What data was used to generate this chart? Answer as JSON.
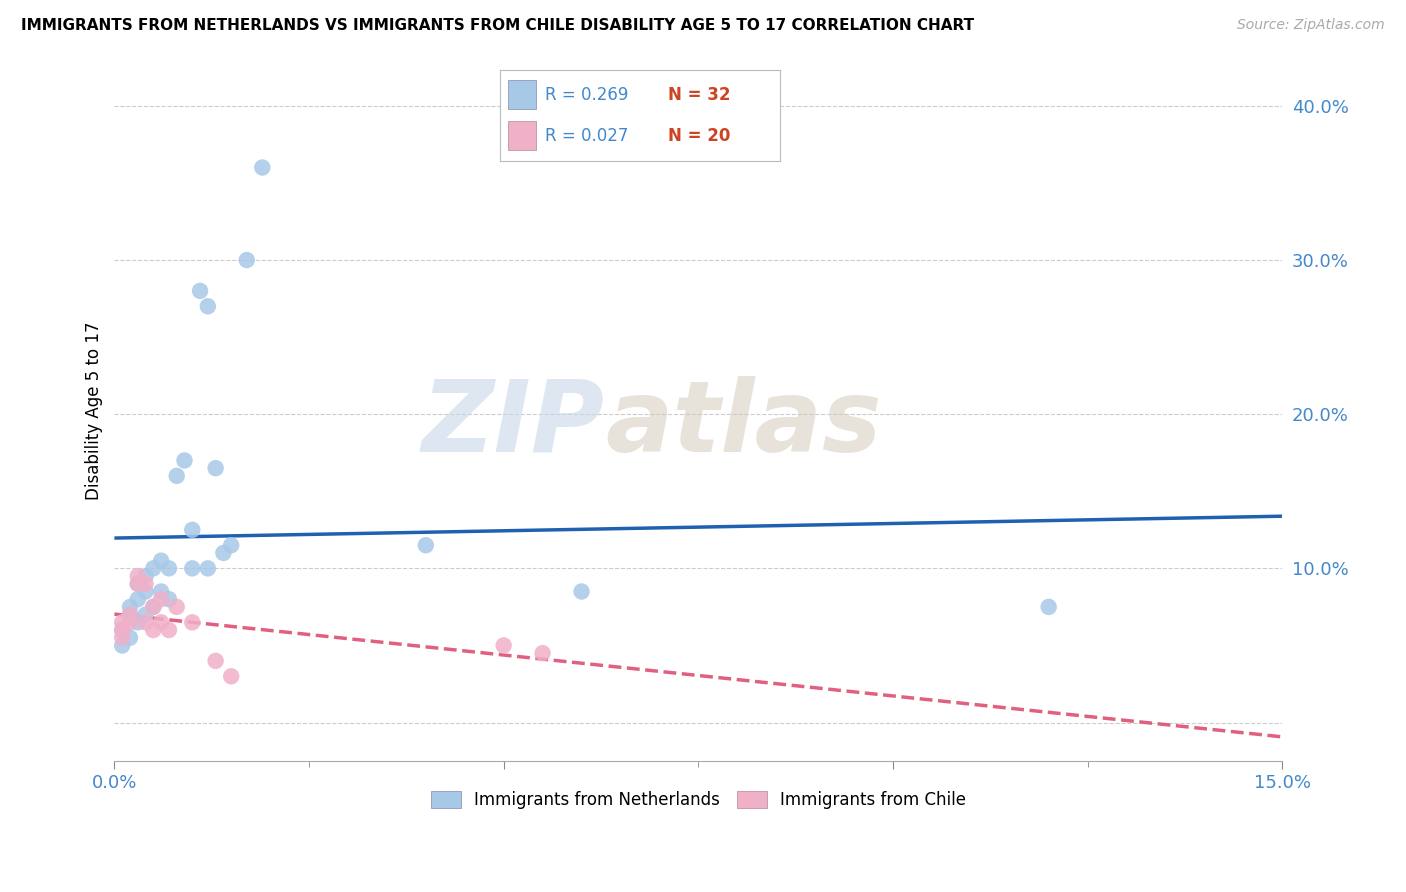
{
  "title": "IMMIGRANTS FROM NETHERLANDS VS IMMIGRANTS FROM CHILE DISABILITY AGE 5 TO 17 CORRELATION CHART",
  "source": "Source: ZipAtlas.com",
  "ylabel": "Disability Age 5 to 17",
  "xlim": [
    0.0,
    0.15
  ],
  "ylim": [
    -0.025,
    0.43
  ],
  "R_netherlands": 0.269,
  "N_netherlands": 32,
  "R_chile": 0.027,
  "N_chile": 20,
  "color_netherlands": "#a8c8e8",
  "color_chile": "#f0b0c8",
  "line_color_netherlands": "#2060b0",
  "line_color_chile": "#e06080",
  "watermark_zip": "ZIP",
  "watermark_atlas": "atlas",
  "nl_x": [
    0.001,
    0.001,
    0.002,
    0.002,
    0.002,
    0.003,
    0.003,
    0.003,
    0.004,
    0.004,
    0.004,
    0.005,
    0.005,
    0.006,
    0.006,
    0.007,
    0.007,
    0.008,
    0.009,
    0.01,
    0.01,
    0.011,
    0.012,
    0.012,
    0.013,
    0.014,
    0.015,
    0.017,
    0.019,
    0.04,
    0.06,
    0.12
  ],
  "nl_y": [
    0.06,
    0.05,
    0.075,
    0.07,
    0.055,
    0.09,
    0.08,
    0.065,
    0.095,
    0.085,
    0.07,
    0.1,
    0.075,
    0.105,
    0.085,
    0.1,
    0.08,
    0.16,
    0.17,
    0.125,
    0.1,
    0.28,
    0.27,
    0.1,
    0.165,
    0.11,
    0.115,
    0.3,
    0.36,
    0.115,
    0.085,
    0.075
  ],
  "ch_x": [
    0.001,
    0.001,
    0.001,
    0.002,
    0.002,
    0.003,
    0.003,
    0.004,
    0.004,
    0.005,
    0.005,
    0.006,
    0.006,
    0.007,
    0.008,
    0.01,
    0.013,
    0.015,
    0.05,
    0.055
  ],
  "ch_y": [
    0.065,
    0.06,
    0.055,
    0.07,
    0.065,
    0.095,
    0.09,
    0.09,
    0.065,
    0.075,
    0.06,
    0.065,
    0.08,
    0.06,
    0.075,
    0.065,
    0.04,
    0.03,
    0.05,
    0.045
  ]
}
